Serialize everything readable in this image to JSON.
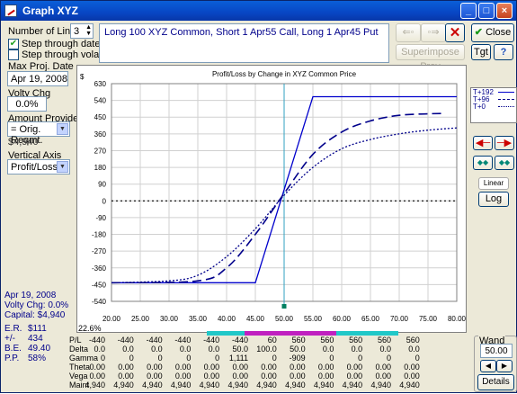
{
  "window": {
    "title": "Graph XYZ"
  },
  "left": {
    "num_lines_label": "Number of Lines",
    "num_lines_value": "3",
    "step_dates_label": "Step through dates",
    "step_vol_label": "Step through volatilities",
    "max_proj_date_label": "Max Proj. Date",
    "max_proj_date_value": "Apr 19, 2008",
    "volty_chg_label": "Volty Chg",
    "volty_chg_value": "0.0%",
    "amount_provided_label": "Amount Provided",
    "amount_provided_value": "= Orig. Reqmt.",
    "amount_value": "$4,940",
    "vertical_axis_label": "Vertical Axis",
    "vertical_axis_value": "Profit/Loss"
  },
  "info": {
    "date": "Apr 19, 2008",
    "volty": "Volty Chg: 0.0%",
    "capital": "Capital: $4,940",
    "er_label": "E.R.",
    "er_value": "$111",
    "pm_label": "+/-",
    "pm_value": "434",
    "be_label": "B.E.",
    "be_value": "49.40",
    "pp_label": "P.P.",
    "pp_value": "58%"
  },
  "description": "Long 100 XYZ Common, Short 1 Apr55 Call, Long 1 Apr45 Put",
  "buttons": {
    "close": "Close",
    "superimpose": "Superimpose Prev",
    "tgt": "Tgt",
    "help": "?",
    "linear": "Linear",
    "log": "Log",
    "details": "Details"
  },
  "legend": [
    {
      "label": "T+192",
      "color": "#0000cc"
    },
    {
      "label": "T+96",
      "color": "#00008b"
    },
    {
      "label": "T+0",
      "color": "#00008b"
    }
  ],
  "wand": {
    "label": "Wand",
    "value": "50.00"
  },
  "status_pct": "22.6%",
  "chart_data": {
    "type": "line",
    "title": "Profit/Loss by Change in XYZ Common Price",
    "ylabel": "$",
    "xlim": [
      20,
      80
    ],
    "ylim": [
      -540,
      630
    ],
    "xticks": [
      "20.00",
      "25.00",
      "30.00",
      "35.00",
      "40.00",
      "45.00",
      "50.00",
      "55.00",
      "60.00",
      "65.00",
      "70.00",
      "75.00",
      "80.00"
    ],
    "yticks": [
      "630",
      "540",
      "450",
      "360",
      "270",
      "180",
      "90",
      "0",
      "-90",
      "-180",
      "-270",
      "-360",
      "-450",
      "-540"
    ],
    "cursor_x": 50,
    "series": [
      {
        "name": "T+192",
        "style": "solid",
        "x": [
          20,
          45,
          55,
          80
        ],
        "y": [
          -440,
          -440,
          560,
          560
        ]
      },
      {
        "name": "T+96",
        "style": "dashed",
        "x": [
          20,
          35,
          40,
          45,
          50,
          55,
          60,
          65,
          70,
          75,
          78
        ],
        "y": [
          -440,
          -430,
          -360,
          -180,
          40,
          250,
          370,
          430,
          460,
          468,
          470
        ]
      },
      {
        "name": "T+0",
        "style": "dotted",
        "x": [
          20,
          30,
          35,
          40,
          45,
          50,
          55,
          60,
          65,
          70,
          75,
          80
        ],
        "y": [
          -440,
          -430,
          -400,
          -300,
          -150,
          30,
          180,
          280,
          330,
          360,
          380,
          392
        ]
      }
    ]
  },
  "table": {
    "rows": [
      {
        "label": "P/L",
        "values": [
          "-440",
          "-440",
          "-440",
          "-440",
          "-440",
          "-440",
          "60",
          "560",
          "560",
          "560",
          "560",
          "560"
        ]
      },
      {
        "label": "Delta",
        "values": [
          "0.0",
          "0.0",
          "0.0",
          "0.0",
          "0.0",
          "50.0",
          "100.0",
          "50.0",
          "0.0",
          "0.0",
          "0.0",
          "0.0"
        ]
      },
      {
        "label": "Gamma",
        "values": [
          "0",
          "0",
          "0",
          "0",
          "0",
          "1,111",
          "0",
          "-909",
          "0",
          "0",
          "0",
          "0"
        ]
      },
      {
        "label": "Theta",
        "values": [
          "0.00",
          "0.00",
          "0.00",
          "0.00",
          "0.00",
          "0.00",
          "0.00",
          "0.00",
          "0.00",
          "0.00",
          "0.00",
          "0.00"
        ]
      },
      {
        "label": "Vega",
        "values": [
          "0.00",
          "0.00",
          "0.00",
          "0.00",
          "0.00",
          "0.00",
          "0.00",
          "0.00",
          "0.00",
          "0.00",
          "0.00",
          "0.00"
        ]
      },
      {
        "label": "Maint",
        "values": [
          "4,940",
          "4,940",
          "4,940",
          "4,940",
          "4,940",
          "4,940",
          "4,940",
          "4,940",
          "4,940",
          "4,940",
          "4,940",
          "4,940"
        ]
      }
    ]
  }
}
